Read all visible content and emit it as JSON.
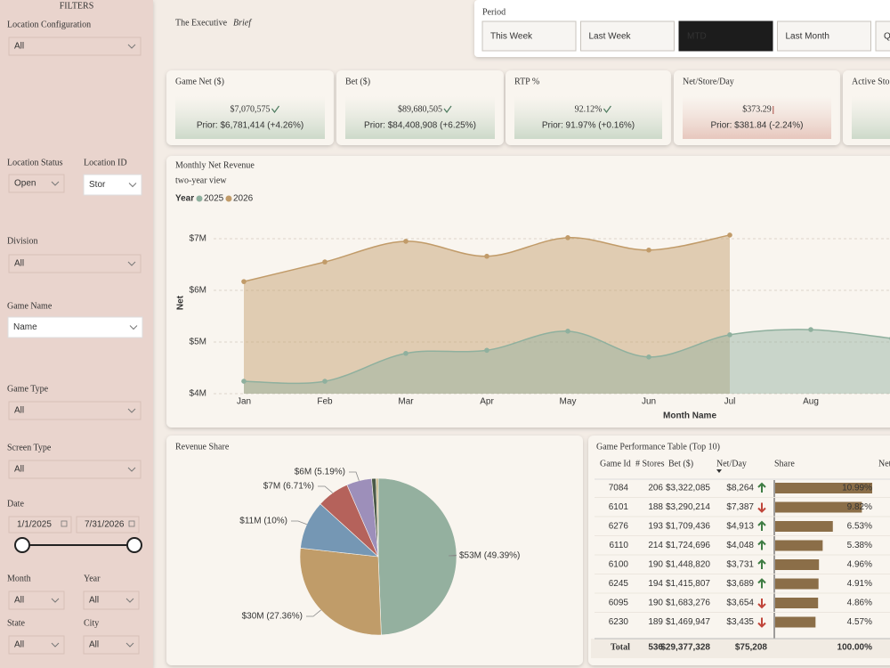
{
  "filters": {
    "title": "FILTERS",
    "location_configuration": {
      "label": "Location Configuration",
      "value": "All"
    },
    "location_status": {
      "label": "Location Status",
      "value": "Open"
    },
    "location_id": {
      "label": "Location ID",
      "value": "Stor"
    },
    "division": {
      "label": "Division",
      "value": "All"
    },
    "game_name": {
      "label": "Game Name",
      "value": "Name"
    },
    "game_type": {
      "label": "Game Type",
      "value": "All"
    },
    "screen_type": {
      "label": "Screen Type",
      "value": "All"
    },
    "date": {
      "label": "Date",
      "start": "1/1/2025",
      "end": "7/31/2026"
    },
    "month": {
      "label": "Month",
      "value": "All"
    },
    "year": {
      "label": "Year",
      "value": "All"
    },
    "state": {
      "label": "State",
      "value": "All"
    },
    "city": {
      "label": "City",
      "value": "All"
    }
  },
  "header": {
    "title": "The Executive",
    "title_emphasis": "Brief"
  },
  "period": {
    "label": "Period",
    "options": [
      "This Week",
      "Last Week",
      "MTD",
      "Last Month",
      "Q"
    ],
    "selected": 2
  },
  "kpis": [
    {
      "label": "Game Net ($)",
      "value": "$7,070,575",
      "prior": "Prior: $6,781,414 (+4.26%)",
      "trend": "up"
    },
    {
      "label": "Bet ($)",
      "value": "$89,680,505",
      "prior": "Prior: $84,408,908 (+6.25%)",
      "trend": "up"
    },
    {
      "label": "RTP %",
      "value": "92.12%",
      "prior": "Prior: 91.97% (+0.16%)",
      "trend": "up"
    },
    {
      "label": "Net/Store/Day",
      "value": "$373.29",
      "prior": "Prior: $381.84 (-2.24%)",
      "trend": "down"
    },
    {
      "label": "Active Sto"
    }
  ],
  "chart_data": [
    {
      "type": "line",
      "area": true,
      "title": "Monthly Net Revenue",
      "subtitle": "two-year view",
      "legend_title": "Year",
      "xlabel": "Month Name",
      "ylabel": "Net",
      "categories": [
        "Jan",
        "Feb",
        "Mar",
        "Apr",
        "May",
        "Jun",
        "Jul",
        "Aug",
        null
      ],
      "series": [
        {
          "name": "2025",
          "color": "#8fb09e",
          "values": [
            4.24,
            4.24,
            4.78,
            4.84,
            5.21,
            4.71,
            5.14,
            5.24,
            5.07
          ]
        },
        {
          "name": "2026",
          "color": "#c19b69",
          "values": [
            6.17,
            6.55,
            6.95,
            6.66,
            7.02,
            6.78,
            7.07,
            null,
            null
          ]
        }
      ],
      "ylim": [
        4,
        7.5
      ],
      "yticks": [
        {
          "value": 4,
          "label": "$4M"
        },
        {
          "value": 5,
          "label": "$5M"
        },
        {
          "value": 6,
          "label": "$6M"
        },
        {
          "value": 7,
          "label": "$7M"
        }
      ],
      "grid": true
    },
    {
      "type": "pie",
      "title": "Revenue Share",
      "values": [
        49.39,
        27.36,
        10,
        6.71,
        5.19,
        0.9,
        0.45
      ],
      "value_labels": [
        "$53M (49.39%)",
        "$30M (27.36%)",
        "$11M (10%)",
        "$7M (6.71%)",
        "$6M (5.19%)",
        null,
        null
      ],
      "colors": [
        "#94b09f",
        "#c09c69",
        "#7597b4",
        "#b5625b",
        "#9d8fba",
        "#4b5a48",
        "#c9b98b"
      ]
    }
  ],
  "table": {
    "title": "Game Performance Table (Top 10)",
    "columns": [
      "Game Id",
      "# Stores",
      "Bet ($)",
      "Net/Day",
      "Share",
      "Net"
    ],
    "rows": [
      {
        "game_id": 7084,
        "stores": 206,
        "bet": "$3,322,085",
        "net_day": "$8,264",
        "trend": "up",
        "share": 10.99,
        "share_label": "10.99%"
      },
      {
        "game_id": 6101,
        "stores": 188,
        "bet": "$3,290,214",
        "net_day": "$7,387",
        "trend": "down",
        "share": 9.82,
        "share_label": "9.82%"
      },
      {
        "game_id": 6276,
        "stores": 193,
        "bet": "$1,709,436",
        "net_day": "$4,913",
        "trend": "up",
        "share": 6.53,
        "share_label": "6.53%"
      },
      {
        "game_id": 6110,
        "stores": 214,
        "bet": "$1,724,696",
        "net_day": "$4,048",
        "trend": "up",
        "share": 5.38,
        "share_label": "5.38%"
      },
      {
        "game_id": 6100,
        "stores": 190,
        "bet": "$1,448,820",
        "net_day": "$3,731",
        "trend": "up",
        "share": 4.96,
        "share_label": "4.96%"
      },
      {
        "game_id": 6245,
        "stores": 194,
        "bet": "$1,415,807",
        "net_day": "$3,689",
        "trend": "up",
        "share": 4.91,
        "share_label": "4.91%"
      },
      {
        "game_id": 6095,
        "stores": 190,
        "bet": "$1,683,276",
        "net_day": "$3,654",
        "trend": "down",
        "share": 4.86,
        "share_label": "4.86%"
      },
      {
        "game_id": 6230,
        "stores": 189,
        "bet": "$1,469,947",
        "net_day": "$3,435",
        "trend": "down",
        "share": 4.57,
        "share_label": "4.57%"
      }
    ],
    "total": {
      "label": "Total",
      "stores": 536,
      "bet": "$29,377,328",
      "net_day": "$75,208",
      "share_label": "100.00%"
    }
  }
}
